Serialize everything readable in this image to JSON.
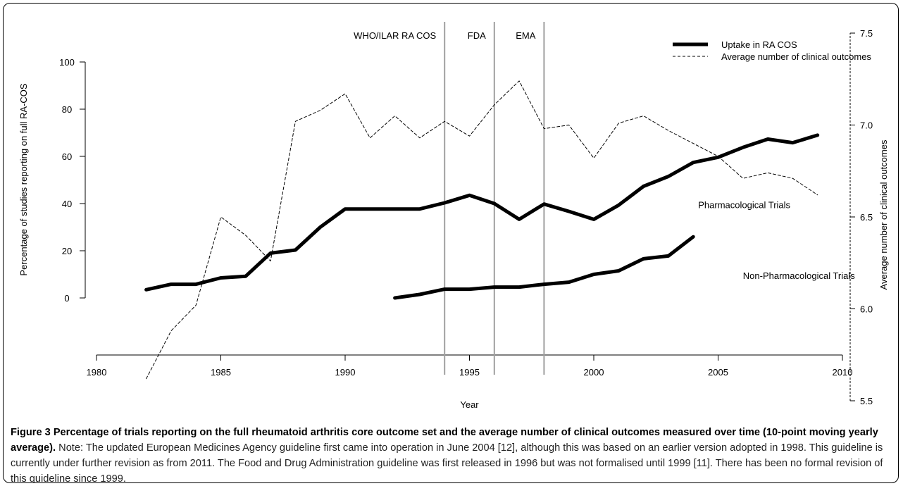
{
  "chart_data": {
    "type": "line",
    "xlabel": "Year",
    "ylabel": "Percentage of studies reporting on full RA-COS",
    "y2label": "Average number of clinical outcomes",
    "xlim": [
      1980,
      2010
    ],
    "ylim": [
      0,
      100
    ],
    "y2lim": [
      5.5,
      7.5
    ],
    "x_ticks": [
      1980,
      1985,
      1990,
      1995,
      2000,
      2005,
      2010
    ],
    "y_ticks": [
      0,
      20,
      40,
      60,
      80,
      100
    ],
    "y2_ticks": [
      5.5,
      6.0,
      6.5,
      7.0,
      7.5
    ],
    "grid": false,
    "legend_position": "top-right",
    "legend": [
      {
        "label": "Uptake in RA COS",
        "style": "thick-solid"
      },
      {
        "label": "Average number of clinical outcomes",
        "style": "dashed"
      }
    ],
    "vlines": [
      {
        "x": 1994,
        "label": "WHO/ILAR RA COS"
      },
      {
        "x": 1996,
        "label": "FDA"
      },
      {
        "x": 1998,
        "label": "EMA"
      }
    ],
    "annotations": [
      {
        "text": "Pharmacological Trials",
        "x": 2004.2,
        "y": 38
      },
      {
        "text": "Non-Pharmacological Trials",
        "x": 2006,
        "y": 8
      }
    ],
    "series": [
      {
        "style": "thick-solid",
        "axis": "left",
        "x": [
          1982,
          1983,
          1984,
          1985,
          1986,
          1987,
          1988,
          1989,
          1990,
          1991,
          1992,
          1993,
          1994,
          1995,
          1996,
          1997,
          1998,
          1999,
          2000,
          2001,
          2002,
          2003,
          2004,
          2005,
          2006,
          2007,
          2008,
          2009
        ],
        "values": [
          3.5,
          5.8,
          5.8,
          8.5,
          9.2,
          19,
          20.3,
          30,
          37.7,
          37.7,
          37.7,
          37.7,
          40.3,
          43.5,
          40,
          33.3,
          39.8,
          36.7,
          33.3,
          39.3,
          47.3,
          51.5,
          57.4,
          59.6,
          63.8,
          67.3,
          65.8,
          69
        ]
      },
      {
        "style": "thick-solid",
        "axis": "left",
        "x": [
          1992,
          1993,
          1994,
          1995,
          1996,
          1997,
          1998,
          1999,
          2000,
          2001,
          2002,
          2003,
          2004
        ],
        "values": [
          0,
          1.5,
          3.7,
          3.7,
          4.6,
          4.6,
          5.8,
          6.7,
          10,
          11.5,
          16.6,
          17.8,
          25.9
        ]
      },
      {
        "style": "dashed",
        "axis": "right",
        "x": [
          1982,
          1983,
          1984,
          1985,
          1986,
          1987,
          1988,
          1989,
          1990,
          1991,
          1992,
          1993,
          1994,
          1995,
          1996,
          1997,
          1998,
          1999,
          2000,
          2001,
          2002,
          2003,
          2004,
          2005,
          2006,
          2007,
          2008,
          2009
        ],
        "values": [
          5.62,
          5.88,
          6.02,
          6.5,
          6.4,
          6.26,
          7.02,
          7.08,
          7.17,
          6.93,
          7.05,
          6.93,
          7.02,
          6.94,
          7.11,
          7.24,
          6.98,
          7.0,
          6.82,
          7.01,
          7.05,
          6.97,
          6.9,
          6.83,
          6.71,
          6.74,
          6.71,
          6.62
        ]
      }
    ]
  },
  "caption": {
    "bold": "Figure 3 Percentage of trials reporting on the full rheumatoid arthritis core outcome set and the average number of clinical outcomes measured over time (10-point moving yearly average).",
    "text": " Note: The updated European Medicines Agency guideline first came into operation in June 2004 [12], although this was based on an earlier version adopted in 1998. This guideline is currently under further revision as from 2011. The Food and Drug Administration guideline was first released in 1996 but was not formalised until 1999 [11]. There has been no formal revision of this guideline since 1999."
  }
}
